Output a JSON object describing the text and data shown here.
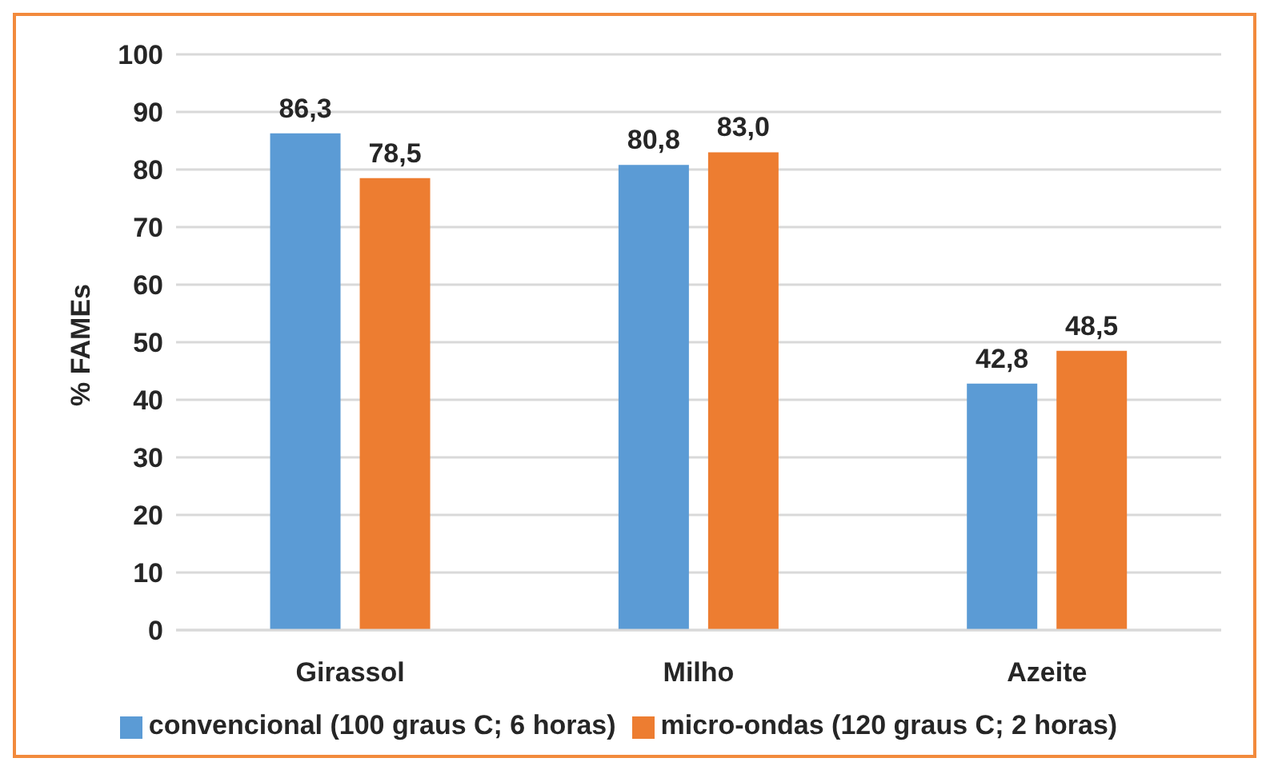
{
  "chart_data": {
    "type": "bar",
    "ylabel": "% FAMEs",
    "categories": [
      "Girassol",
      "Milho",
      "Azeite"
    ],
    "series": [
      {
        "name": "convencional (100 graus C; 6 horas)",
        "color": "#5b9bd5",
        "values": [
          86.3,
          80.8,
          42.8
        ],
        "value_labels": [
          "86,3",
          "80,8",
          "42,8"
        ]
      },
      {
        "name": "micro-ondas (120 graus C; 2 horas)",
        "color": "#ed7d31",
        "values": [
          78.5,
          83.0,
          48.5
        ],
        "value_labels": [
          "78,5",
          "83,0",
          "48,5"
        ]
      }
    ],
    "ylim": [
      0,
      100
    ],
    "yticks": [
      0,
      10,
      20,
      30,
      40,
      50,
      60,
      70,
      80,
      90,
      100
    ],
    "grid": "y",
    "legend": "bottom"
  }
}
